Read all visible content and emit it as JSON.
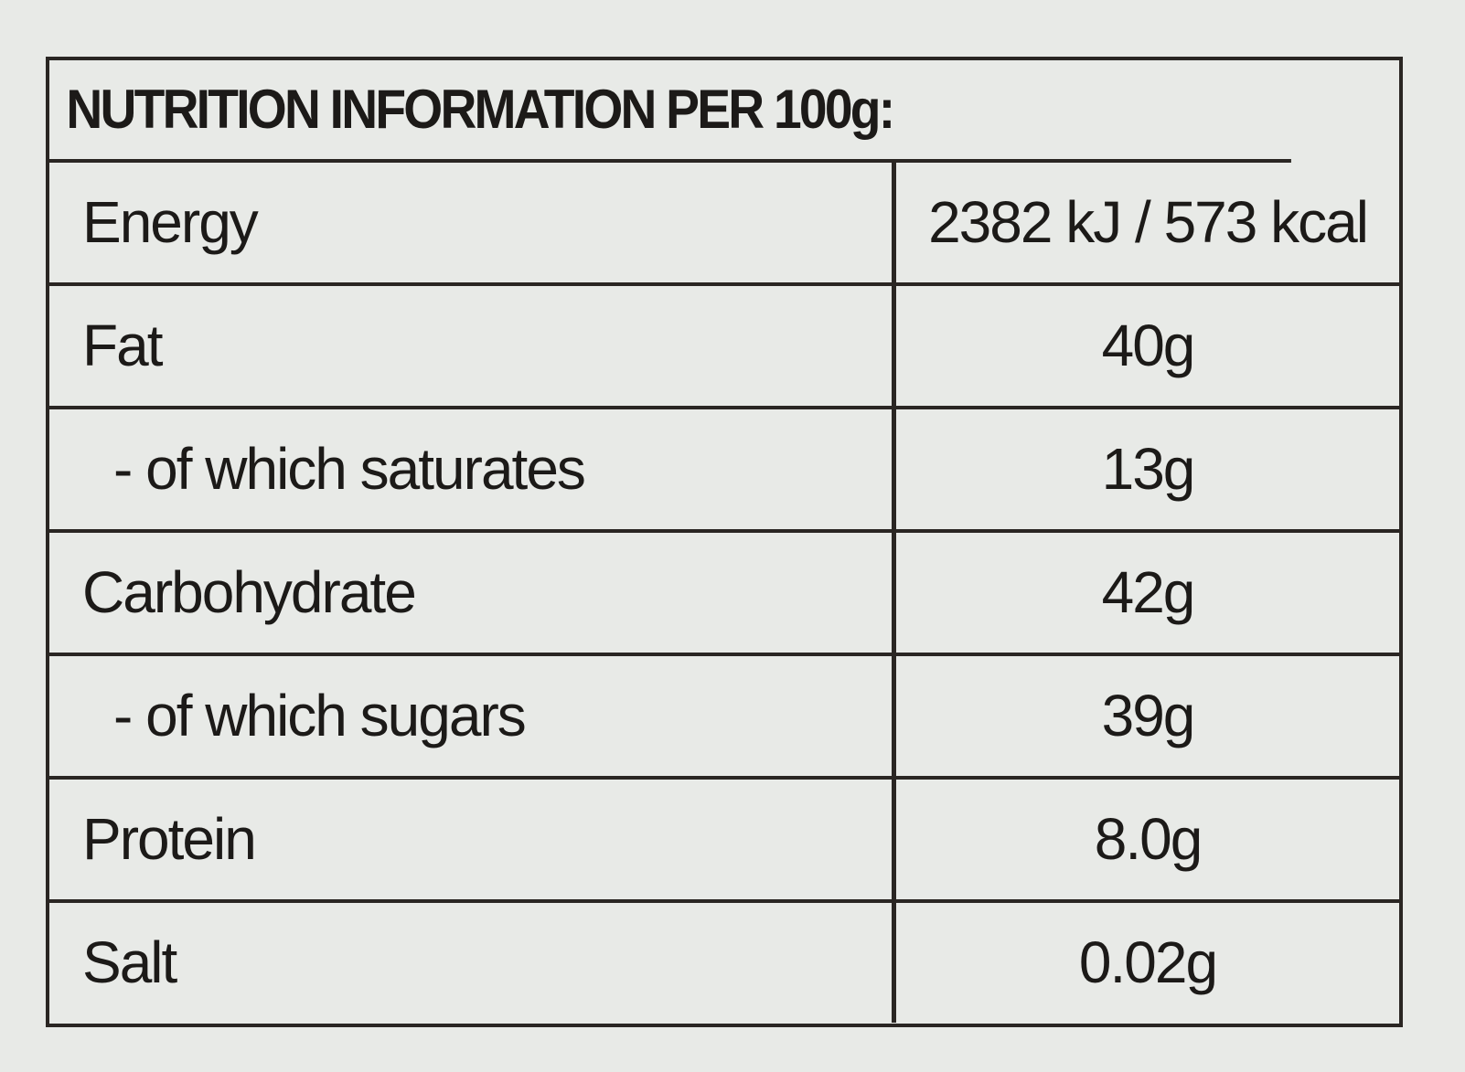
{
  "header": {
    "title": "NUTRITION INFORMATION PER 100g:"
  },
  "table": {
    "rows": [
      [
        "Energy",
        "2382 kJ / 573 kcal"
      ],
      [
        "Fat",
        "40g"
      ],
      [
        "- of which saturates",
        "13g"
      ],
      [
        "Carbohydrate",
        "42g"
      ],
      [
        "- of which sugars",
        "39g"
      ],
      [
        "Protein",
        "8.0g"
      ],
      [
        "Salt",
        "0.02g"
      ]
    ]
  }
}
